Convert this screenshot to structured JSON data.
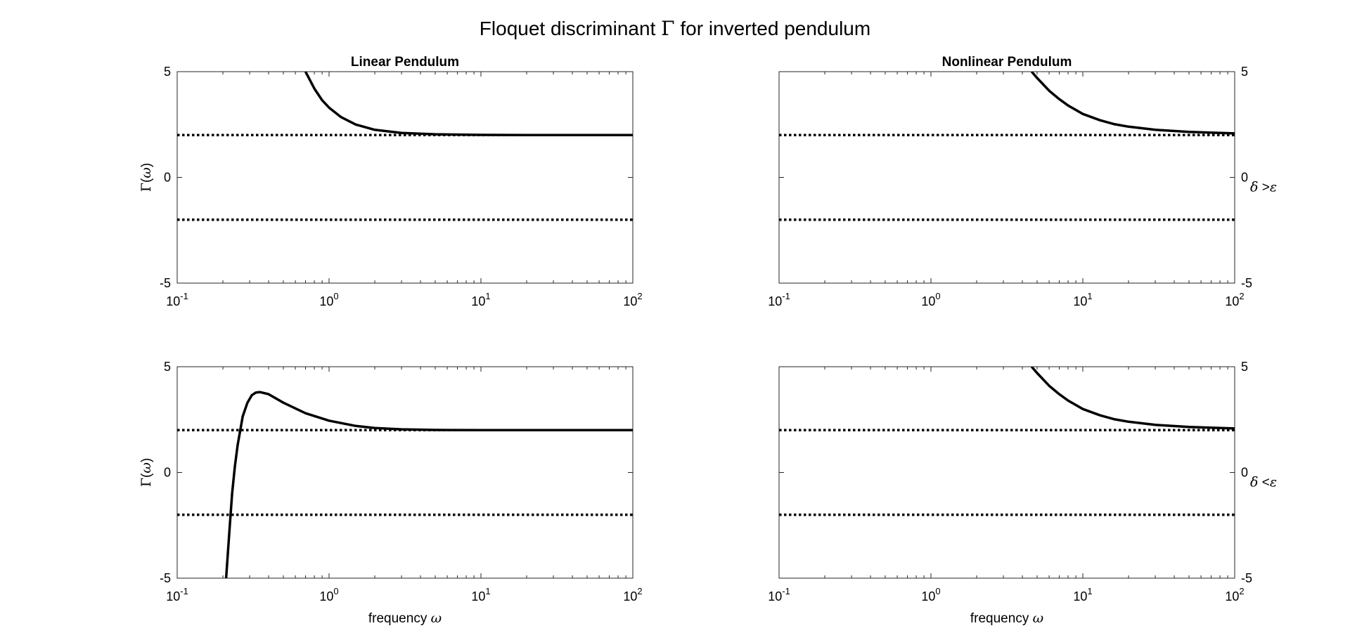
{
  "figure": {
    "title_prefix": "Floquet discriminant ",
    "title_symbol": "Γ",
    "title_suffix": " for inverted pendulum"
  },
  "chart_data": [
    {
      "id": "linear-top",
      "type": "line",
      "title": "Linear Pendulum",
      "xlabel": "",
      "ylabel": {
        "symbol": "Γ",
        "open": "(",
        "var": "ω",
        "close": ")"
      },
      "xscale": "log",
      "xlim": [
        0.1,
        100
      ],
      "ylim": [
        -5,
        5
      ],
      "xticks": [
        0.1,
        1,
        10,
        100
      ],
      "xtick_labels": [
        {
          "base": "10",
          "exp": "-1"
        },
        {
          "base": "10",
          "exp": "0"
        },
        {
          "base": "10",
          "exp": "1"
        },
        {
          "base": "10",
          "exp": "2"
        }
      ],
      "yticks": [
        -5,
        0,
        5
      ],
      "ytick_labels": [
        "-5",
        "0",
        "5"
      ],
      "yaxis_side": "left",
      "reference_lines": [
        2,
        -2
      ],
      "series": [
        {
          "x": [
            0.7,
            0.8,
            0.9,
            1.0,
            1.2,
            1.5,
            2,
            3,
            5,
            10,
            20,
            50,
            100
          ],
          "y": [
            5.0,
            4.2,
            3.65,
            3.3,
            2.85,
            2.5,
            2.25,
            2.1,
            2.04,
            2.01,
            2.0,
            2.0,
            2.0
          ]
        }
      ]
    },
    {
      "id": "nonlinear-top",
      "type": "line",
      "title": "Nonlinear Pendulum",
      "xlabel": "",
      "ylabel": null,
      "right_label": {
        "var": "δ",
        "op": " >",
        "rhs": "ε"
      },
      "xscale": "log",
      "xlim": [
        0.1,
        100
      ],
      "ylim": [
        -5,
        5
      ],
      "xticks": [
        0.1,
        1,
        10,
        100
      ],
      "xtick_labels": [
        {
          "base": "10",
          "exp": "-1"
        },
        {
          "base": "10",
          "exp": "0"
        },
        {
          "base": "10",
          "exp": "1"
        },
        {
          "base": "10",
          "exp": "2"
        }
      ],
      "yticks": [
        -5,
        0,
        5
      ],
      "ytick_labels": [
        "-5",
        "0",
        "5"
      ],
      "yaxis_side": "right",
      "reference_lines": [
        2,
        -2
      ],
      "series": [
        {
          "x": [
            4.6,
            5,
            6,
            7,
            8,
            10,
            13,
            16,
            20,
            30,
            50,
            100
          ],
          "y": [
            5.0,
            4.7,
            4.1,
            3.7,
            3.4,
            3.0,
            2.7,
            2.52,
            2.4,
            2.25,
            2.15,
            2.08
          ]
        }
      ]
    },
    {
      "id": "linear-bottom",
      "type": "line",
      "title": "",
      "xlabel": {
        "text": "frequency ",
        "var": "ω"
      },
      "ylabel": {
        "symbol": "Γ",
        "open": "(",
        "var": "ω",
        "close": ")"
      },
      "xscale": "log",
      "xlim": [
        0.1,
        100
      ],
      "ylim": [
        -5,
        5
      ],
      "xticks": [
        0.1,
        1,
        10,
        100
      ],
      "xtick_labels": [
        {
          "base": "10",
          "exp": "-1"
        },
        {
          "base": "10",
          "exp": "0"
        },
        {
          "base": "10",
          "exp": "1"
        },
        {
          "base": "10",
          "exp": "2"
        }
      ],
      "yticks": [
        -5,
        0,
        5
      ],
      "ytick_labels": [
        "-5",
        "0",
        "5"
      ],
      "yaxis_side": "left",
      "reference_lines": [
        2,
        -2
      ],
      "series": [
        {
          "x": [
            0.21,
            0.22,
            0.23,
            0.24,
            0.25,
            0.27,
            0.29,
            0.31,
            0.33,
            0.35,
            0.4,
            0.5,
            0.7,
            1.0,
            1.5,
            2,
            3,
            5,
            10,
            100
          ],
          "y": [
            -5.0,
            -2.9,
            -1.0,
            0.3,
            1.3,
            2.65,
            3.3,
            3.65,
            3.78,
            3.8,
            3.7,
            3.3,
            2.8,
            2.45,
            2.2,
            2.1,
            2.04,
            2.01,
            2.0,
            2.0
          ]
        }
      ]
    },
    {
      "id": "nonlinear-bottom",
      "type": "line",
      "title": "",
      "xlabel": {
        "text": "frequency ",
        "var": "ω"
      },
      "ylabel": null,
      "right_label": {
        "var": "δ",
        "op": " <",
        "rhs": "ε"
      },
      "xscale": "log",
      "xlim": [
        0.1,
        100
      ],
      "ylim": [
        -5,
        5
      ],
      "xticks": [
        0.1,
        1,
        10,
        100
      ],
      "xtick_labels": [
        {
          "base": "10",
          "exp": "-1"
        },
        {
          "base": "10",
          "exp": "0"
        },
        {
          "base": "10",
          "exp": "1"
        },
        {
          "base": "10",
          "exp": "2"
        }
      ],
      "yticks": [
        -5,
        0,
        5
      ],
      "ytick_labels": [
        "-5",
        "0",
        "5"
      ],
      "yaxis_side": "right",
      "reference_lines": [
        2,
        -2
      ],
      "series": [
        {
          "x": [
            4.6,
            5,
            6,
            7,
            8,
            10,
            13,
            16,
            20,
            30,
            50,
            100
          ],
          "y": [
            5.0,
            4.7,
            4.1,
            3.7,
            3.4,
            3.0,
            2.7,
            2.52,
            2.4,
            2.25,
            2.15,
            2.08
          ]
        }
      ]
    }
  ]
}
